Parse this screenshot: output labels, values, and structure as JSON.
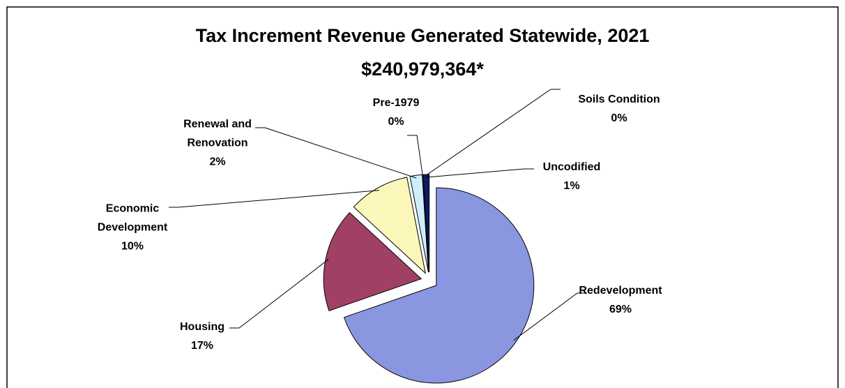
{
  "chart_data": {
    "type": "pie",
    "title": "Tax Increment Revenue Generated Statewide, 2021",
    "subtitle": "$240,979,364*",
    "categories": [
      "Redevelopment",
      "Housing",
      "Economic Development",
      "Renewal and Renovation",
      "Pre-1979",
      "Soils Condition",
      "Uncodified"
    ],
    "values": [
      69,
      17,
      10,
      2,
      0,
      0,
      1
    ],
    "value_labels": [
      "69%",
      "17%",
      "10%",
      "2%",
      "0%",
      "0%",
      "1%"
    ],
    "colors": [
      "#8b96e0",
      "#a04064",
      "#fbf7ba",
      "#cdeefb",
      "#ffffff",
      "#2a4bb0",
      "#0b1a66"
    ]
  }
}
